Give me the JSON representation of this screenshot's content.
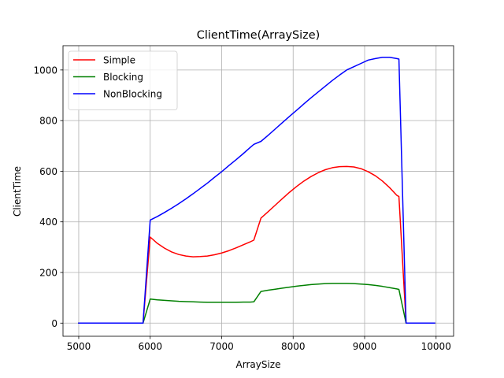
{
  "chart_data": {
    "type": "line",
    "title": "ClientTime(ArraySize)",
    "xlabel": "ArraySize",
    "ylabel": "ClientTime",
    "xlim": [
      4780,
      10245
    ],
    "ylim": [
      -52,
      1096
    ],
    "xticks": [
      5000,
      6000,
      7000,
      8000,
      9000,
      10000
    ],
    "yticks": [
      0,
      200,
      400,
      600,
      800,
      1000
    ],
    "grid": true,
    "legend": "top-left",
    "series": [
      {
        "name": "Simple",
        "color": "#ff0000",
        "x": [
          5000,
          5100,
          5200,
          5300,
          5400,
          5500,
          5600,
          5700,
          5800,
          5900,
          6000,
          6100,
          6200,
          6300,
          6400,
          6500,
          6600,
          6700,
          6800,
          6900,
          7000,
          7100,
          7200,
          7300,
          7400,
          7450,
          7550,
          7650,
          7750,
          7850,
          7950,
          8050,
          8150,
          8250,
          8350,
          8450,
          8550,
          8650,
          8750,
          8850,
          8950,
          9050,
          9150,
          9250,
          9350,
          9450,
          9480,
          9580,
          9680,
          9780,
          9880,
          9980
        ],
        "y": [
          0,
          0,
          0,
          0,
          0,
          0,
          0,
          0,
          0,
          0,
          340,
          315,
          296,
          281,
          271,
          265,
          262,
          263,
          265,
          270,
          277,
          286,
          297,
          309,
          321,
          328,
          415,
          440,
          466,
          492,
          517,
          540,
          561,
          579,
          594,
          606,
          614,
          618,
          619,
          617,
          610,
          598,
          582,
          561,
          535,
          505,
          500,
          0,
          0,
          0,
          0,
          0
        ]
      },
      {
        "name": "Blocking",
        "color": "#008000",
        "x": [
          5000,
          5100,
          5200,
          5300,
          5400,
          5500,
          5600,
          5700,
          5800,
          5900,
          6000,
          6100,
          6200,
          6300,
          6400,
          6500,
          6600,
          6700,
          6800,
          6900,
          7000,
          7100,
          7200,
          7300,
          7400,
          7450,
          7550,
          7650,
          7750,
          7850,
          7950,
          8050,
          8150,
          8250,
          8350,
          8450,
          8550,
          8650,
          8750,
          8850,
          8950,
          9050,
          9150,
          9250,
          9350,
          9450,
          9480,
          9580,
          9680,
          9780,
          9880,
          9980
        ],
        "y": [
          0,
          0,
          0,
          0,
          0,
          0,
          0,
          0,
          0,
          0,
          95,
          92,
          90,
          88,
          86,
          85,
          84,
          83,
          82,
          82,
          82,
          82,
          82,
          83,
          83,
          84,
          125,
          130,
          134,
          138,
          142,
          146,
          149,
          152,
          154,
          156,
          157,
          157,
          157,
          156,
          154,
          152,
          149,
          145,
          140,
          135,
          133,
          0,
          0,
          0,
          0,
          0
        ]
      },
      {
        "name": "NonBlocking",
        "color": "#0000ff",
        "x": [
          5000,
          5100,
          5200,
          5300,
          5400,
          5500,
          5600,
          5700,
          5800,
          5900,
          6000,
          6100,
          6200,
          6300,
          6400,
          6500,
          6600,
          6700,
          6800,
          6900,
          7000,
          7100,
          7200,
          7300,
          7400,
          7450,
          7550,
          7650,
          7750,
          7850,
          7950,
          8050,
          8150,
          8250,
          8350,
          8450,
          8550,
          8650,
          8750,
          8850,
          8950,
          9050,
          9150,
          9250,
          9350,
          9450,
          9480,
          9580,
          9680,
          9780,
          9880,
          9980
        ],
        "y": [
          0,
          0,
          0,
          0,
          0,
          0,
          0,
          0,
          0,
          0,
          407,
          421,
          437,
          454,
          472,
          491,
          511,
          532,
          553,
          576,
          598,
          622,
          645,
          669,
          694,
          706,
          718,
          742,
          767,
          792,
          817,
          841,
          866,
          890,
          913,
          936,
          959,
          980,
          1000,
          1013,
          1026,
          1039,
          1045,
          1050,
          1050,
          1045,
          1043,
          0,
          0,
          0,
          0,
          0
        ]
      }
    ]
  }
}
